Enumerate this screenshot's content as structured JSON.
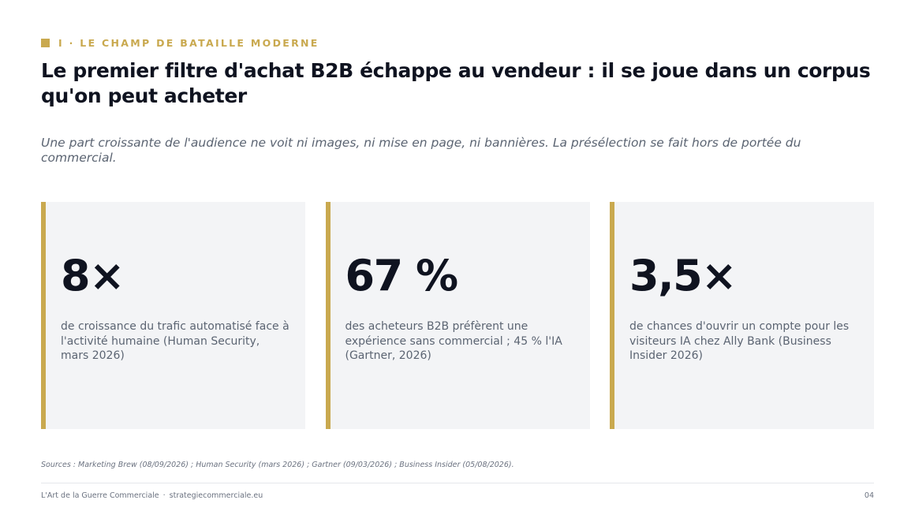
{
  "header": {
    "eyebrow": "I · LE CHAMP DE BATAILLE MODERNE",
    "title": "Le premier filtre d'achat B2B échappe au vendeur : il se joue dans un corpus qu'on peut acheter",
    "subtitle": "Une part croissante de l'audience ne voit ni images, ni mise en page, ni bannières. La présélection se fait hors de portée du commercial."
  },
  "cards": [
    {
      "stat": "8×",
      "description": "de croissance du trafic automatisé face à l'activité humaine (Human Security, mars 2026)"
    },
    {
      "stat": "67 %",
      "description": "des acheteurs B2B préfèrent une expérience sans commercial ; 45 % l'IA (Gartner, 2026)"
    },
    {
      "stat": "3,5×",
      "description": "de chances d'ouvrir un compte pour les visiteurs IA chez Ally Bank (Business Insider 2026)"
    }
  ],
  "sources": "Sources : Marketing Brew (08/09/2026) ; Human Security (mars 2026) ; Gartner (09/03/2026) ; Business Insider (05/08/2026).",
  "footer": {
    "brand": "L'Art de la Guerre Commerciale",
    "separator": "·",
    "site": "strategiecommerciale.eu",
    "page_number": "04"
  },
  "colors": {
    "accent": "#c9a94f",
    "card_background": "#f3f4f6",
    "heading": "#0f1320",
    "muted_text": "#5b6472"
  }
}
